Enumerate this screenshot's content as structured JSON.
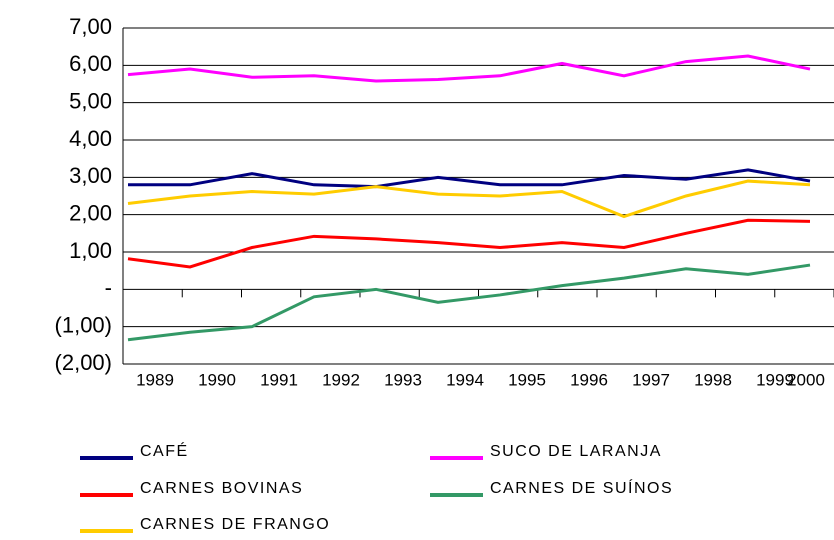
{
  "chart_data": {
    "type": "line",
    "categories": [
      "1989",
      "1990",
      "1991",
      "1992",
      "1993",
      "1994",
      "1995",
      "1996",
      "1997",
      "1998",
      "1999",
      "2000"
    ],
    "series": [
      {
        "name": "CAFÉ",
        "color": "#000080",
        "values": [
          2.8,
          2.8,
          3.1,
          2.8,
          2.75,
          3.0,
          2.8,
          2.8,
          3.05,
          2.95,
          3.2,
          2.9
        ]
      },
      {
        "name": "SUCO DE LARANJA",
        "color": "#ff00ff",
        "values": [
          5.75,
          5.9,
          5.68,
          5.72,
          5.58,
          5.62,
          5.72,
          6.05,
          5.72,
          6.1,
          6.25,
          5.9
        ]
      },
      {
        "name": "CARNES BOVINAS",
        "color": "#ff0000",
        "values": [
          0.82,
          0.6,
          1.12,
          1.42,
          1.35,
          1.25,
          1.12,
          1.25,
          1.12,
          1.5,
          1.85,
          1.82
        ]
      },
      {
        "name": "CARNES DE SUÍNOS",
        "color": "#339966",
        "values": [
          -1.35,
          -1.15,
          -1.0,
          -0.2,
          0.0,
          -0.35,
          -0.15,
          0.1,
          0.3,
          0.55,
          0.4,
          0.65
        ]
      },
      {
        "name": "CARNES DE FRANGO",
        "color": "#ffcc00",
        "values": [
          2.3,
          2.5,
          2.62,
          2.55,
          2.75,
          2.55,
          2.5,
          2.62,
          1.95,
          2.5,
          2.9,
          2.8
        ]
      }
    ],
    "ylim": [
      -2,
      7
    ],
    "yticks": [
      {
        "value": 7,
        "label": "7,00"
      },
      {
        "value": 6,
        "label": "6,00"
      },
      {
        "value": 5,
        "label": "5,00"
      },
      {
        "value": 4,
        "label": "4,00"
      },
      {
        "value": 3,
        "label": "3,00"
      },
      {
        "value": 2,
        "label": "2,00"
      },
      {
        "value": 1,
        "label": "1,00"
      },
      {
        "value": 0,
        "label": "-"
      },
      {
        "value": -1,
        "label": "(1,00)"
      },
      {
        "value": -2,
        "label": "(2,00)"
      }
    ],
    "grid": true
  }
}
